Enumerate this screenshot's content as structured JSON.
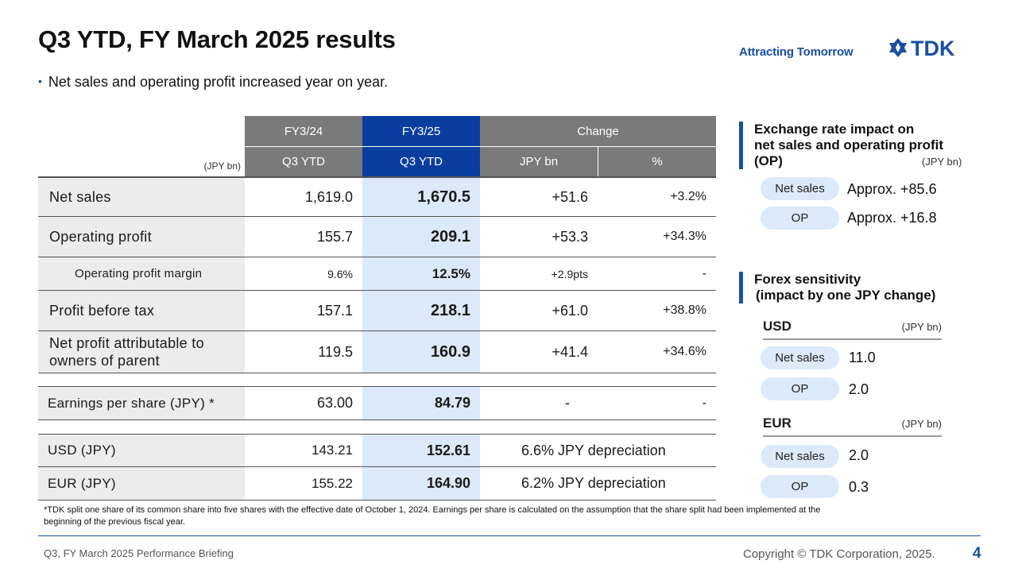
{
  "header": {
    "title": "Q3 YTD, FY March 2025 results",
    "tagline": "Attracting Tomorrow",
    "logo_text": "TDK",
    "brand_color": "#1a4fa0"
  },
  "bullet": "Net sales and operating profit increased year on year.",
  "table": {
    "unit": "(JPY bn)",
    "col_fy24": "FY3/24",
    "col_fy25": "FY3/25",
    "col_change": "Change",
    "sub_fy24": "Q3 YTD",
    "sub_fy25": "Q3 YTD",
    "sub_bn": "JPY bn",
    "sub_pct": "%",
    "rows": [
      {
        "label": "Net sales",
        "fy24": "1,619.0",
        "fy25": "1,670.5",
        "bn": "+51.6",
        "pct": "+3.2%"
      },
      {
        "label": "Operating profit",
        "fy24": "155.7",
        "fy25": "209.1",
        "bn": "+53.3",
        "pct": "+34.3%"
      },
      {
        "label": "Operating profit margin",
        "fy24": "9.6%",
        "fy25": "12.5%",
        "bn": "+2.9pts",
        "pct": "-"
      },
      {
        "label": "Profit before tax",
        "fy24": "157.1",
        "fy25": "218.1",
        "bn": "+61.0",
        "pct": "+38.8%"
      },
      {
        "label": "Net profit attributable to owners of parent",
        "fy24": "119.5",
        "fy25": "160.9",
        "bn": "+41.4",
        "pct": "+34.6%"
      },
      {
        "label": "Earnings per share (JPY) *",
        "fy24": "63.00",
        "fy25": "84.79",
        "bn": "-",
        "pct": "-"
      },
      {
        "label": "USD (JPY)",
        "fy24": "143.21",
        "fy25": "152.61",
        "change": "6.6% JPY depreciation"
      },
      {
        "label": "EUR (JPY)",
        "fy24": "155.22",
        "fy25": "164.90",
        "change": "6.2% JPY depreciation"
      }
    ]
  },
  "exchange_impact": {
    "title_line1": "Exchange rate impact on",
    "title_line2": "net sales and operating profit",
    "title_line3": "(OP)",
    "unit": "(JPY bn)",
    "items": [
      {
        "label": "Net sales",
        "value": "Approx. +85.6"
      },
      {
        "label": "OP",
        "value": "Approx. +16.8"
      }
    ]
  },
  "forex": {
    "title_line1": "Forex sensitivity",
    "title_line2": "(impact by one JPY change)",
    "usd": {
      "name": "USD",
      "unit": "(JPY bn)",
      "items": [
        {
          "label": "Net sales",
          "value": "11.0"
        },
        {
          "label": "OP",
          "value": "2.0"
        }
      ]
    },
    "eur": {
      "name": "EUR",
      "unit": "(JPY bn)",
      "items": [
        {
          "label": "Net sales",
          "value": "2.0"
        },
        {
          "label": "OP",
          "value": "0.3"
        }
      ]
    }
  },
  "footnote": "*TDK split one share of its common share into five shares with the effective date of October 1, 2024. Earnings per share is calculated on the assumption that the share split had been implemented at the beginning of the previous fiscal year.",
  "footer": {
    "left": "Q3, FY March 2025 Performance Briefing",
    "copyright": "Copyright © TDK Corporation, 2025.",
    "page": "4"
  }
}
